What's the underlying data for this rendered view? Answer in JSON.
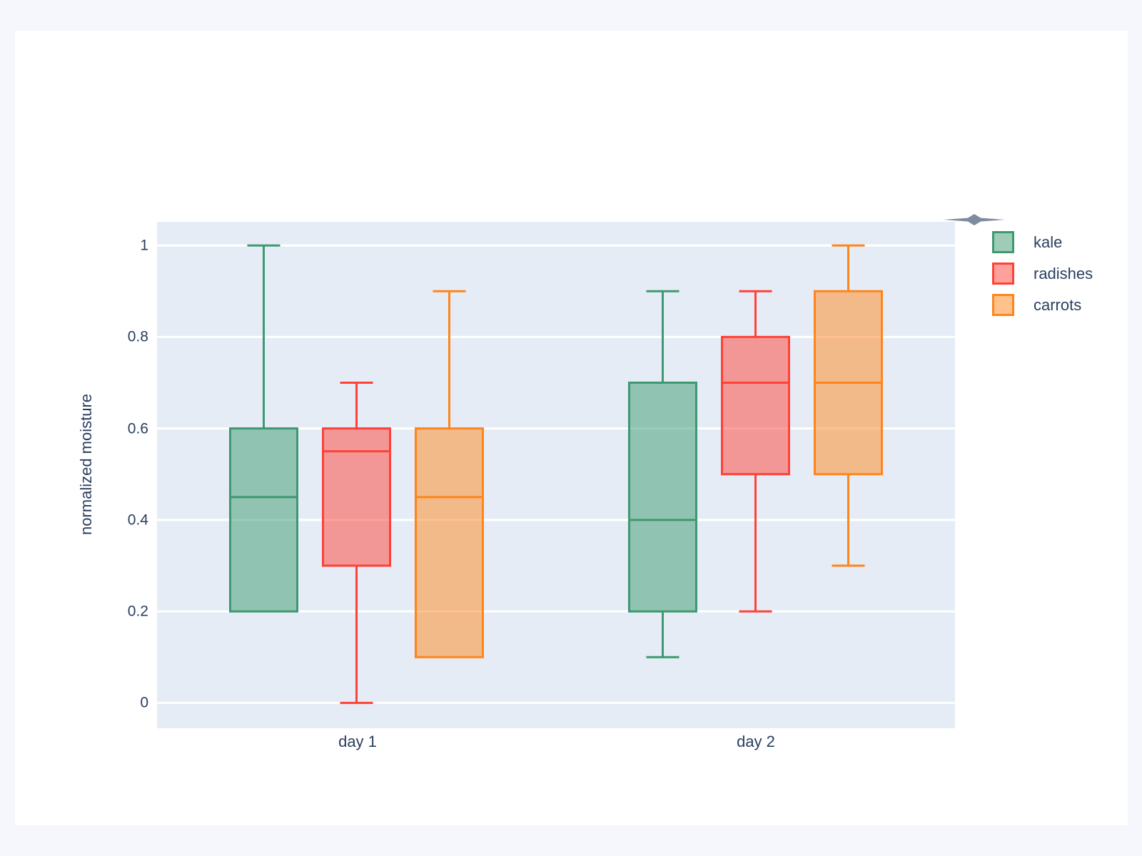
{
  "page": {
    "background_color": "#f6f7fd",
    "card_background_color": "#ffffff"
  },
  "chart_data": {
    "type": "box",
    "boxmode": "group",
    "title": "",
    "xlabel": "",
    "ylabel": "normalized moisture",
    "categories": [
      "day 1",
      "day 2"
    ],
    "yaxis": {
      "ticks": [
        {
          "value": 0,
          "label": "0"
        },
        {
          "value": 0.2,
          "label": "0.2"
        },
        {
          "value": 0.4,
          "label": "0.4"
        },
        {
          "value": 0.6,
          "label": "0.6"
        },
        {
          "value": 0.8,
          "label": "0.8"
        },
        {
          "value": 1,
          "label": "1"
        }
      ],
      "range": [
        -0.0555,
        1.0516
      ],
      "grid": true,
      "grid_color": "#ffffff"
    },
    "plot_background_color": "#e5ecf6",
    "text_color": "#2a3f5f",
    "legend_position": "top-right",
    "series": [
      {
        "name": "kale",
        "line_color": "#3D9970",
        "fill_color": "rgba(61,153,112,0.5)",
        "boxes": [
          {
            "category": "day 1",
            "low": 0.2,
            "q1": 0.2,
            "median": 0.45,
            "q3": 0.6,
            "high": 1.0
          },
          {
            "category": "day 2",
            "low": 0.1,
            "q1": 0.2,
            "median": 0.4,
            "q3": 0.7,
            "high": 0.9
          }
        ]
      },
      {
        "name": "radishes",
        "line_color": "#FF4136",
        "fill_color": "rgba(255,65,54,0.5)",
        "boxes": [
          {
            "category": "day 1",
            "low": 0.0,
            "q1": 0.3,
            "median": 0.55,
            "q3": 0.6,
            "high": 0.7
          },
          {
            "category": "day 2",
            "low": 0.2,
            "q1": 0.5,
            "median": 0.7,
            "q3": 0.8,
            "high": 0.9
          }
        ]
      },
      {
        "name": "carrots",
        "line_color": "#FF851B",
        "fill_color": "rgba(255,133,27,0.5)",
        "boxes": [
          {
            "category": "day 1",
            "low": 0.1,
            "q1": 0.1,
            "median": 0.45,
            "q3": 0.6,
            "high": 0.9
          },
          {
            "category": "day 2",
            "low": 0.3,
            "q1": 0.5,
            "median": 0.7,
            "q3": 0.9,
            "high": 1.0
          }
        ]
      }
    ],
    "decoration": {
      "star_icon_color": "#7e8ba0"
    }
  }
}
